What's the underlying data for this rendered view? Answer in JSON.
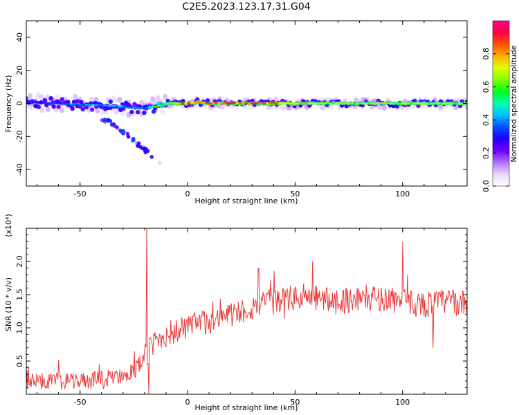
{
  "title": "C2E5.2023.123.17.31.G04",
  "chart_data": [
    {
      "type": "heatmap",
      "name": "spectrogram",
      "xlabel": "Height of straight line (km)",
      "ylabel": "Frequency (Hz)",
      "xlim": [
        -75,
        130
      ],
      "ylim": [
        -50,
        50
      ],
      "xticks": [
        -50,
        0,
        50,
        100
      ],
      "yticks": [
        -40,
        -20,
        0,
        20,
        40
      ],
      "colorbar": {
        "label": "Normalized spectral amplitude",
        "range": [
          0.0,
          1.0
        ],
        "ticks": [
          0.0,
          0.2,
          0.4,
          0.6,
          0.8
        ],
        "tick_labels": [
          "0.0",
          "0.2",
          "0.4",
          "0.6",
          "0.8"
        ],
        "colors": [
          "#ffffff",
          "#e8d8ff",
          "#b070ff",
          "#7000ff",
          "#2000ff",
          "#0050ff",
          "#00c0ff",
          "#00ffb0",
          "#00ff20",
          "#80ff00",
          "#e0ff00",
          "#ffb000",
          "#ff5000",
          "#ff0040",
          "#ff0090"
        ]
      },
      "main_band": {
        "frequency_hz": [
          [
            -75,
            1
          ],
          [
            -60,
            0
          ],
          [
            -50,
            -1
          ],
          [
            -40,
            -1
          ],
          [
            -30,
            -2
          ],
          [
            -20,
            -3
          ],
          [
            -15,
            -2
          ],
          [
            -10,
            0
          ],
          [
            0,
            0
          ],
          [
            5,
            1
          ],
          [
            10,
            0
          ],
          [
            30,
            0
          ],
          [
            60,
            0
          ],
          [
            100,
            0
          ],
          [
            130,
            0
          ]
        ],
        "peak_amplitude": [
          [
            -75,
            0.3
          ],
          [
            -40,
            0.45
          ],
          [
            -20,
            0.4
          ],
          [
            -10,
            0.75
          ],
          [
            0,
            0.9
          ],
          [
            20,
            0.9
          ],
          [
            40,
            0.85
          ],
          [
            60,
            0.75
          ],
          [
            100,
            0.75
          ],
          [
            130,
            0.7
          ]
        ]
      },
      "secondary_track": {
        "points_km_hz": [
          [
            -40,
            -9
          ],
          [
            -35,
            -12
          ],
          [
            -30,
            -17
          ],
          [
            -25,
            -23
          ],
          [
            -20,
            -28
          ],
          [
            -16,
            -33
          ],
          [
            -13,
            -36
          ]
        ],
        "amplitude": 0.3
      }
    },
    {
      "type": "line",
      "name": "snr",
      "xlabel": "Height of straight line (km)",
      "ylabel": "SNR (10 * v/v)",
      "scale_label": "(x10⁴)",
      "xlim": [
        -75,
        130
      ],
      "ylim": [
        0.0,
        2.5
      ],
      "xticks": [
        -50,
        0,
        50,
        100
      ],
      "yticks": [
        0.5,
        1.0,
        1.5,
        2.0
      ],
      "ytick_labels": [
        "0.5",
        "1.0",
        "1.5",
        "2.0"
      ],
      "color": "#e83a3a",
      "trend_x": [
        -75,
        -60,
        -45,
        -35,
        -25,
        -20,
        -15,
        -10,
        -5,
        0,
        10,
        20,
        30,
        40,
        50,
        60,
        70,
        80,
        90,
        100,
        110,
        120,
        130
      ],
      "trend_y": [
        0.2,
        0.2,
        0.2,
        0.25,
        0.35,
        0.55,
        0.8,
        0.9,
        0.95,
        1.0,
        1.1,
        1.2,
        1.3,
        1.4,
        1.45,
        1.45,
        1.4,
        1.45,
        1.45,
        1.4,
        1.35,
        1.4,
        1.35
      ],
      "spikes": [
        [
          -19,
          2.55
        ],
        [
          -18,
          0.0
        ],
        [
          100,
          2.3
        ],
        [
          33,
          1.9
        ],
        [
          58,
          2.0
        ],
        [
          114,
          0.7
        ]
      ]
    }
  ]
}
